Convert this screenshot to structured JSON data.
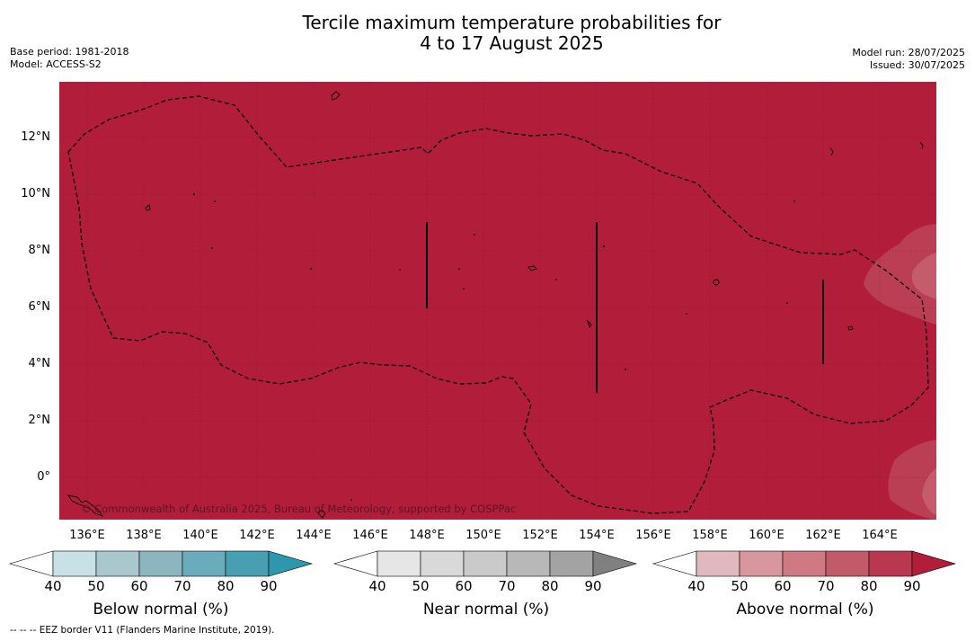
{
  "header": {
    "title_line1": "Tercile maximum temperature probabilities for",
    "title_line2": "4 to 17 August 2025",
    "base_period": "Base period: 1981-2018",
    "model": "Model: ACCESS-S2",
    "model_run": "Model run: 28/07/2025",
    "issued": "Issued: 30/07/2025"
  },
  "map": {
    "background_color": "#b21e3a",
    "copyright": "© Commonwealth of Australia 2025, Bureau of Meteorology, supported by COSPPac",
    "lat_labels": [
      "12°N",
      "10°N",
      "8°N",
      "6°N",
      "4°N",
      "2°N",
      "0°"
    ],
    "lon_labels": [
      "136°E",
      "138°E",
      "140°E",
      "142°E",
      "144°E",
      "146°E",
      "148°E",
      "150°E",
      "152°E",
      "154°E",
      "156°E",
      "158°E",
      "160°E",
      "162°E",
      "164°E"
    ]
  },
  "colorbars": [
    {
      "title": "Below normal (%)",
      "ticks": [
        "40",
        "50",
        "60",
        "70",
        "80",
        "90"
      ],
      "colors": [
        "#ffffff",
        "#c7e1e7",
        "#a9c8ce",
        "#8cb5bf",
        "#6aacbb",
        "#479fb1",
        "#2c97ad"
      ]
    },
    {
      "title": "Near normal (%)",
      "ticks": [
        "40",
        "50",
        "60",
        "70",
        "80",
        "90"
      ],
      "colors": [
        "#ffffff",
        "#e6e6e6",
        "#d9d9d9",
        "#cacaca",
        "#b8b8b8",
        "#a3a3a3",
        "#808080"
      ]
    },
    {
      "title": "Above normal (%)",
      "ticks": [
        "40",
        "50",
        "60",
        "70",
        "80",
        "90"
      ],
      "colors": [
        "#ffffff",
        "#e0b9bf",
        "#d8979f",
        "#cf7a83",
        "#c25b69",
        "#b9384f",
        "#b21e3a"
      ]
    }
  ],
  "footnote": "--  --  -- EEZ border V11 (Flanders Marine Institute, 2019)."
}
